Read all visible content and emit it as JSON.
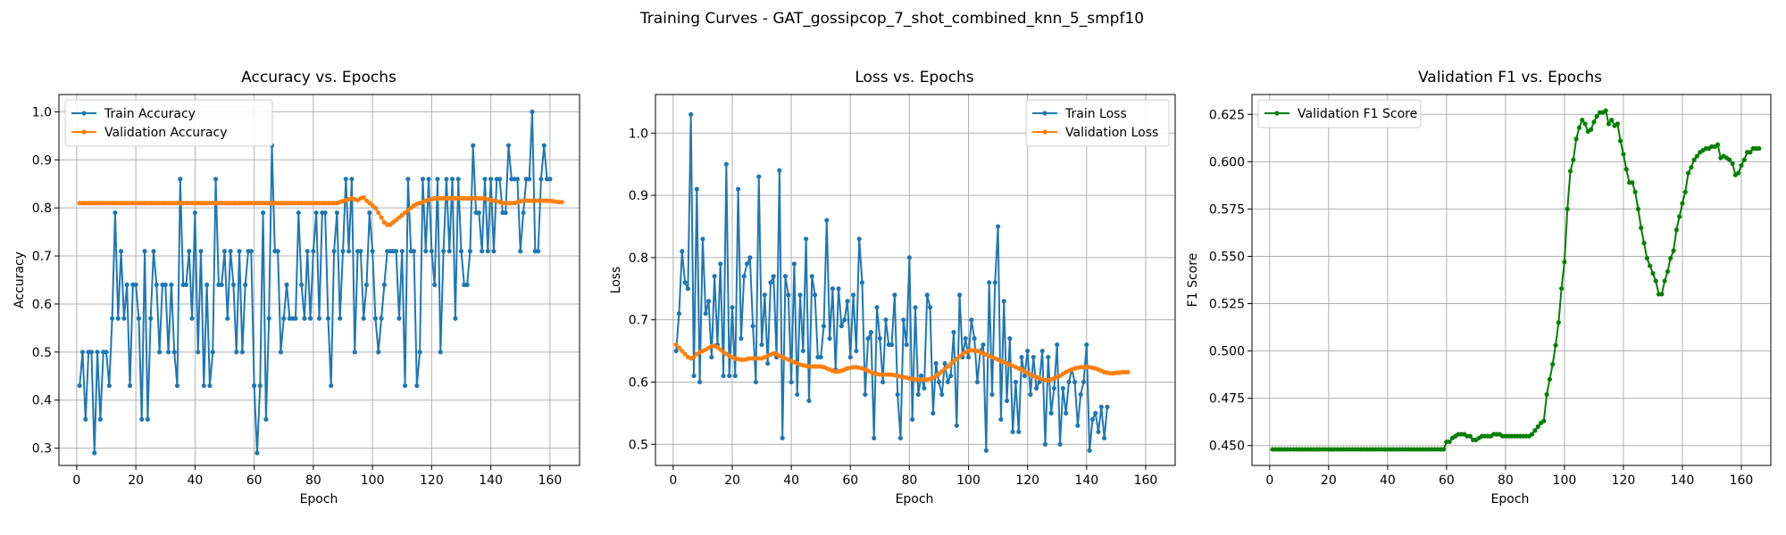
{
  "figure": {
    "suptitle": "Training Curves - GAT_gossipcop_7_shot_combined_knn_5_smpf10"
  },
  "colors": {
    "blue": "#1f77b4",
    "orange": "#ff7f0e",
    "green": "#008000",
    "grid": "#b0b0b0"
  },
  "chart_data": [
    {
      "type": "line",
      "title": "Accuracy vs. Epochs",
      "xlabel": "Epoch",
      "ylabel": "Accuracy",
      "xlim": [
        -6,
        170
      ],
      "ylim": [
        0.264,
        1.036
      ],
      "xticks": [
        0,
        20,
        40,
        60,
        80,
        100,
        120,
        140,
        160
      ],
      "yticks": [
        0.3,
        0.4,
        0.5,
        0.6,
        0.7,
        0.8,
        0.9,
        1.0
      ],
      "ytick_labels": [
        "0.3",
        "0.4",
        "0.5",
        "0.6",
        "0.7",
        "0.8",
        "0.9",
        "1.0"
      ],
      "grid": true,
      "legend": "top-left",
      "series": [
        {
          "name": "Train Accuracy",
          "color": "#1f77b4",
          "x_start": 1,
          "values": [
            0.43,
            0.5,
            0.36,
            0.5,
            0.5,
            0.29,
            0.5,
            0.36,
            0.5,
            0.5,
            0.43,
            0.57,
            0.79,
            0.57,
            0.71,
            0.57,
            0.64,
            0.43,
            0.64,
            0.64,
            0.57,
            0.36,
            0.71,
            0.36,
            0.57,
            0.71,
            0.64,
            0.5,
            0.64,
            0.64,
            0.5,
            0.64,
            0.5,
            0.43,
            0.86,
            0.64,
            0.64,
            0.71,
            0.57,
            0.79,
            0.5,
            0.71,
            0.43,
            0.64,
            0.43,
            0.5,
            0.86,
            0.64,
            0.64,
            0.71,
            0.57,
            0.71,
            0.64,
            0.5,
            0.71,
            0.5,
            0.64,
            0.71,
            0.71,
            0.43,
            0.29,
            0.43,
            0.79,
            0.36,
            0.57,
            0.93,
            0.71,
            0.71,
            0.5,
            0.57,
            0.64,
            0.57,
            0.57,
            0.57,
            0.79,
            0.64,
            0.57,
            0.71,
            0.57,
            0.71,
            0.79,
            0.57,
            0.79,
            0.79,
            0.57,
            0.43,
            0.71,
            0.79,
            0.57,
            0.71,
            0.86,
            0.71,
            0.86,
            0.5,
            0.71,
            0.71,
            0.57,
            0.64,
            0.79,
            0.71,
            0.57,
            0.5,
            0.57,
            0.64,
            0.71,
            0.71,
            0.71,
            0.71,
            0.57,
            0.71,
            0.43,
            0.86,
            0.71,
            0.71,
            0.43,
            0.5,
            0.86,
            0.71,
            0.86,
            0.71,
            0.64,
            0.86,
            0.5,
            0.71,
            0.86,
            0.71,
            0.86,
            0.57,
            0.86,
            0.71,
            0.64,
            0.64,
            0.71,
            0.93,
            0.79,
            0.79,
            0.71,
            0.86,
            0.71,
            0.86,
            0.71,
            0.86,
            0.86,
            0.79,
            0.79,
            0.93,
            0.86,
            0.86,
            0.86,
            0.71,
            0.79,
            0.86,
            0.86,
            1.0,
            0.71,
            0.71,
            0.86,
            0.93,
            0.86,
            0.86
          ]
        },
        {
          "name": "Validation Accuracy",
          "color": "#ff7f0e",
          "x_start": 1,
          "values": [
            0.81,
            0.81,
            0.81,
            0.81,
            0.81,
            0.81,
            0.81,
            0.81,
            0.81,
            0.81,
            0.81,
            0.81,
            0.81,
            0.81,
            0.81,
            0.81,
            0.81,
            0.81,
            0.81,
            0.81,
            0.81,
            0.81,
            0.81,
            0.81,
            0.81,
            0.81,
            0.81,
            0.81,
            0.81,
            0.81,
            0.81,
            0.81,
            0.81,
            0.81,
            0.81,
            0.81,
            0.81,
            0.81,
            0.81,
            0.81,
            0.81,
            0.81,
            0.81,
            0.81,
            0.81,
            0.81,
            0.81,
            0.81,
            0.81,
            0.81,
            0.81,
            0.81,
            0.81,
            0.81,
            0.81,
            0.81,
            0.81,
            0.81,
            0.81,
            0.81,
            0.81,
            0.81,
            0.81,
            0.81,
            0.81,
            0.81,
            0.81,
            0.81,
            0.81,
            0.81,
            0.81,
            0.81,
            0.81,
            0.81,
            0.81,
            0.81,
            0.81,
            0.81,
            0.81,
            0.81,
            0.81,
            0.81,
            0.81,
            0.81,
            0.81,
            0.81,
            0.81,
            0.81,
            0.812,
            0.814,
            0.816,
            0.818,
            0.82,
            0.818,
            0.816,
            0.82,
            0.822,
            0.815,
            0.81,
            0.805,
            0.8,
            0.79,
            0.78,
            0.77,
            0.765,
            0.765,
            0.77,
            0.775,
            0.78,
            0.785,
            0.79,
            0.795,
            0.8,
            0.805,
            0.808,
            0.81,
            0.812,
            0.815,
            0.817,
            0.818,
            0.82,
            0.82,
            0.82,
            0.82,
            0.82,
            0.82,
            0.82,
            0.82,
            0.82,
            0.82,
            0.82,
            0.82,
            0.82,
            0.82,
            0.82,
            0.82,
            0.82,
            0.82,
            0.818,
            0.816,
            0.815,
            0.814,
            0.812,
            0.81,
            0.81,
            0.81,
            0.81,
            0.81,
            0.812,
            0.814,
            0.815,
            0.815,
            0.815,
            0.815,
            0.815,
            0.815,
            0.815,
            0.815,
            0.815,
            0.815,
            0.814,
            0.813,
            0.812,
            0.812
          ]
        }
      ]
    },
    {
      "type": "line",
      "title": "Loss vs. Epochs",
      "xlabel": "Epoch",
      "ylabel": "Loss",
      "xlim": [
        -6,
        170
      ],
      "ylim": [
        0.466,
        1.062
      ],
      "xticks": [
        0,
        20,
        40,
        60,
        80,
        100,
        120,
        140,
        160
      ],
      "yticks": [
        0.5,
        0.6,
        0.7,
        0.8,
        0.9,
        1.0
      ],
      "ytick_labels": [
        "0.5",
        "0.6",
        "0.7",
        "0.8",
        "0.9",
        "1.0"
      ],
      "grid": true,
      "legend": "top-right",
      "series": [
        {
          "name": "Train Loss",
          "color": "#1f77b4",
          "x_start": 1,
          "values": [
            0.65,
            0.71,
            0.81,
            0.76,
            0.75,
            1.03,
            0.61,
            0.91,
            0.6,
            0.83,
            0.71,
            0.73,
            0.64,
            0.77,
            0.66,
            0.79,
            0.61,
            0.95,
            0.61,
            0.72,
            0.61,
            0.91,
            0.67,
            0.77,
            0.79,
            0.8,
            0.69,
            0.6,
            0.93,
            0.66,
            0.74,
            0.63,
            0.76,
            0.77,
            0.64,
            0.94,
            0.51,
            0.77,
            0.74,
            0.6,
            0.79,
            0.58,
            0.74,
            0.65,
            0.83,
            0.57,
            0.77,
            0.74,
            0.64,
            0.64,
            0.69,
            0.86,
            0.67,
            0.75,
            0.62,
            0.75,
            0.69,
            0.7,
            0.73,
            0.64,
            0.74,
            0.65,
            0.83,
            0.76,
            0.58,
            0.67,
            0.68,
            0.51,
            0.72,
            0.67,
            0.6,
            0.7,
            0.66,
            0.66,
            0.74,
            0.58,
            0.51,
            0.7,
            0.66,
            0.8,
            0.54,
            0.72,
            0.58,
            0.61,
            0.59,
            0.74,
            0.72,
            0.55,
            0.63,
            0.6,
            0.58,
            0.63,
            0.6,
            0.61,
            0.68,
            0.53,
            0.74,
            0.64,
            0.67,
            0.64,
            0.7,
            0.67,
            0.6,
            0.65,
            0.66,
            0.49,
            0.76,
            0.58,
            0.76,
            0.85,
            0.54,
            0.73,
            0.57,
            0.67,
            0.52,
            0.6,
            0.52,
            0.64,
            0.61,
            0.65,
            0.58,
            0.64,
            0.59,
            0.6,
            0.65,
            0.5,
            0.64,
            0.55,
            0.59,
            0.66,
            0.5,
            0.59,
            0.55,
            0.6,
            0.62,
            0.6,
            0.53,
            0.58,
            0.6,
            0.66,
            0.49,
            0.54,
            0.55,
            0.52,
            0.56,
            0.51,
            0.56
          ]
        },
        {
          "name": "Validation Loss",
          "color": "#ff7f0e",
          "x_start": 1,
          "values": [
            0.66,
            0.655,
            0.65,
            0.645,
            0.64,
            0.638,
            0.64,
            0.645,
            0.648,
            0.65,
            0.652,
            0.655,
            0.658,
            0.658,
            0.656,
            0.652,
            0.648,
            0.645,
            0.642,
            0.64,
            0.638,
            0.637,
            0.636,
            0.636,
            0.637,
            0.638,
            0.638,
            0.638,
            0.638,
            0.638,
            0.64,
            0.642,
            0.644,
            0.646,
            0.645,
            0.642,
            0.64,
            0.638,
            0.636,
            0.634,
            0.632,
            0.63,
            0.628,
            0.627,
            0.626,
            0.625,
            0.625,
            0.625,
            0.625,
            0.625,
            0.624,
            0.622,
            0.62,
            0.618,
            0.617,
            0.617,
            0.618,
            0.62,
            0.622,
            0.623,
            0.624,
            0.624,
            0.623,
            0.622,
            0.62,
            0.618,
            0.616,
            0.614,
            0.613,
            0.612,
            0.612,
            0.612,
            0.612,
            0.612,
            0.611,
            0.61,
            0.609,
            0.608,
            0.607,
            0.606,
            0.605,
            0.604,
            0.604,
            0.604,
            0.604,
            0.604,
            0.605,
            0.607,
            0.61,
            0.613,
            0.617,
            0.621,
            0.625,
            0.629,
            0.633,
            0.637,
            0.641,
            0.645,
            0.648,
            0.65,
            0.651,
            0.651,
            0.65,
            0.648,
            0.646,
            0.644,
            0.642,
            0.64,
            0.638,
            0.636,
            0.634,
            0.632,
            0.63,
            0.628,
            0.626,
            0.624,
            0.622,
            0.62,
            0.617,
            0.614,
            0.612,
            0.61,
            0.608,
            0.606,
            0.604,
            0.603,
            0.603,
            0.604,
            0.606,
            0.608,
            0.61,
            0.613,
            0.616,
            0.618,
            0.62,
            0.622,
            0.623,
            0.624,
            0.624,
            0.624,
            0.624,
            0.623,
            0.622,
            0.62,
            0.618,
            0.616,
            0.615,
            0.614,
            0.614,
            0.615,
            0.615,
            0.616,
            0.616,
            0.616
          ]
        }
      ]
    },
    {
      "type": "line",
      "title": "Validation F1 vs. Epochs",
      "xlabel": "Epoch",
      "ylabel": "F1 Score",
      "xlim": [
        -6,
        170
      ],
      "ylim": [
        0.4395,
        0.6355
      ],
      "xticks": [
        0,
        20,
        40,
        60,
        80,
        100,
        120,
        140,
        160
      ],
      "yticks": [
        0.45,
        0.475,
        0.5,
        0.525,
        0.55,
        0.575,
        0.6,
        0.625
      ],
      "ytick_labels": [
        "0.450",
        "0.475",
        "0.500",
        "0.525",
        "0.550",
        "0.575",
        "0.600",
        "0.625"
      ],
      "grid": true,
      "legend": "top-left",
      "series": [
        {
          "name": "Validation F1 Score",
          "color": "#008000",
          "x_start": 1,
          "values": [
            0.448,
            0.448,
            0.448,
            0.448,
            0.448,
            0.448,
            0.448,
            0.448,
            0.448,
            0.448,
            0.448,
            0.448,
            0.448,
            0.448,
            0.448,
            0.448,
            0.448,
            0.448,
            0.448,
            0.448,
            0.448,
            0.448,
            0.448,
            0.448,
            0.448,
            0.448,
            0.448,
            0.448,
            0.448,
            0.448,
            0.448,
            0.448,
            0.448,
            0.448,
            0.448,
            0.448,
            0.448,
            0.448,
            0.448,
            0.448,
            0.448,
            0.448,
            0.448,
            0.448,
            0.448,
            0.448,
            0.448,
            0.448,
            0.448,
            0.448,
            0.448,
            0.448,
            0.448,
            0.448,
            0.448,
            0.448,
            0.448,
            0.448,
            0.448,
            0.452,
            0.452,
            0.454,
            0.455,
            0.456,
            0.456,
            0.456,
            0.455,
            0.455,
            0.453,
            0.453,
            0.454,
            0.455,
            0.455,
            0.455,
            0.455,
            0.456,
            0.456,
            0.456,
            0.455,
            0.455,
            0.455,
            0.455,
            0.455,
            0.455,
            0.455,
            0.455,
            0.455,
            0.455,
            0.456,
            0.458,
            0.46,
            0.462,
            0.463,
            0.477,
            0.485,
            0.493,
            0.503,
            0.515,
            0.533,
            0.547,
            0.575,
            0.595,
            0.601,
            0.612,
            0.618,
            0.622,
            0.62,
            0.616,
            0.617,
            0.621,
            0.624,
            0.626,
            0.626,
            0.627,
            0.62,
            0.622,
            0.619,
            0.62,
            0.611,
            0.604,
            0.596,
            0.589,
            0.589,
            0.584,
            0.575,
            0.565,
            0.557,
            0.549,
            0.545,
            0.541,
            0.537,
            0.53,
            0.53,
            0.537,
            0.542,
            0.549,
            0.553,
            0.564,
            0.571,
            0.578,
            0.584,
            0.594,
            0.597,
            0.601,
            0.603,
            0.605,
            0.606,
            0.607,
            0.607,
            0.608,
            0.608,
            0.609,
            0.602,
            0.603,
            0.602,
            0.601,
            0.599,
            0.593,
            0.594,
            0.598,
            0.601,
            0.605,
            0.605,
            0.607,
            0.607,
            0.607
          ]
        }
      ]
    }
  ]
}
